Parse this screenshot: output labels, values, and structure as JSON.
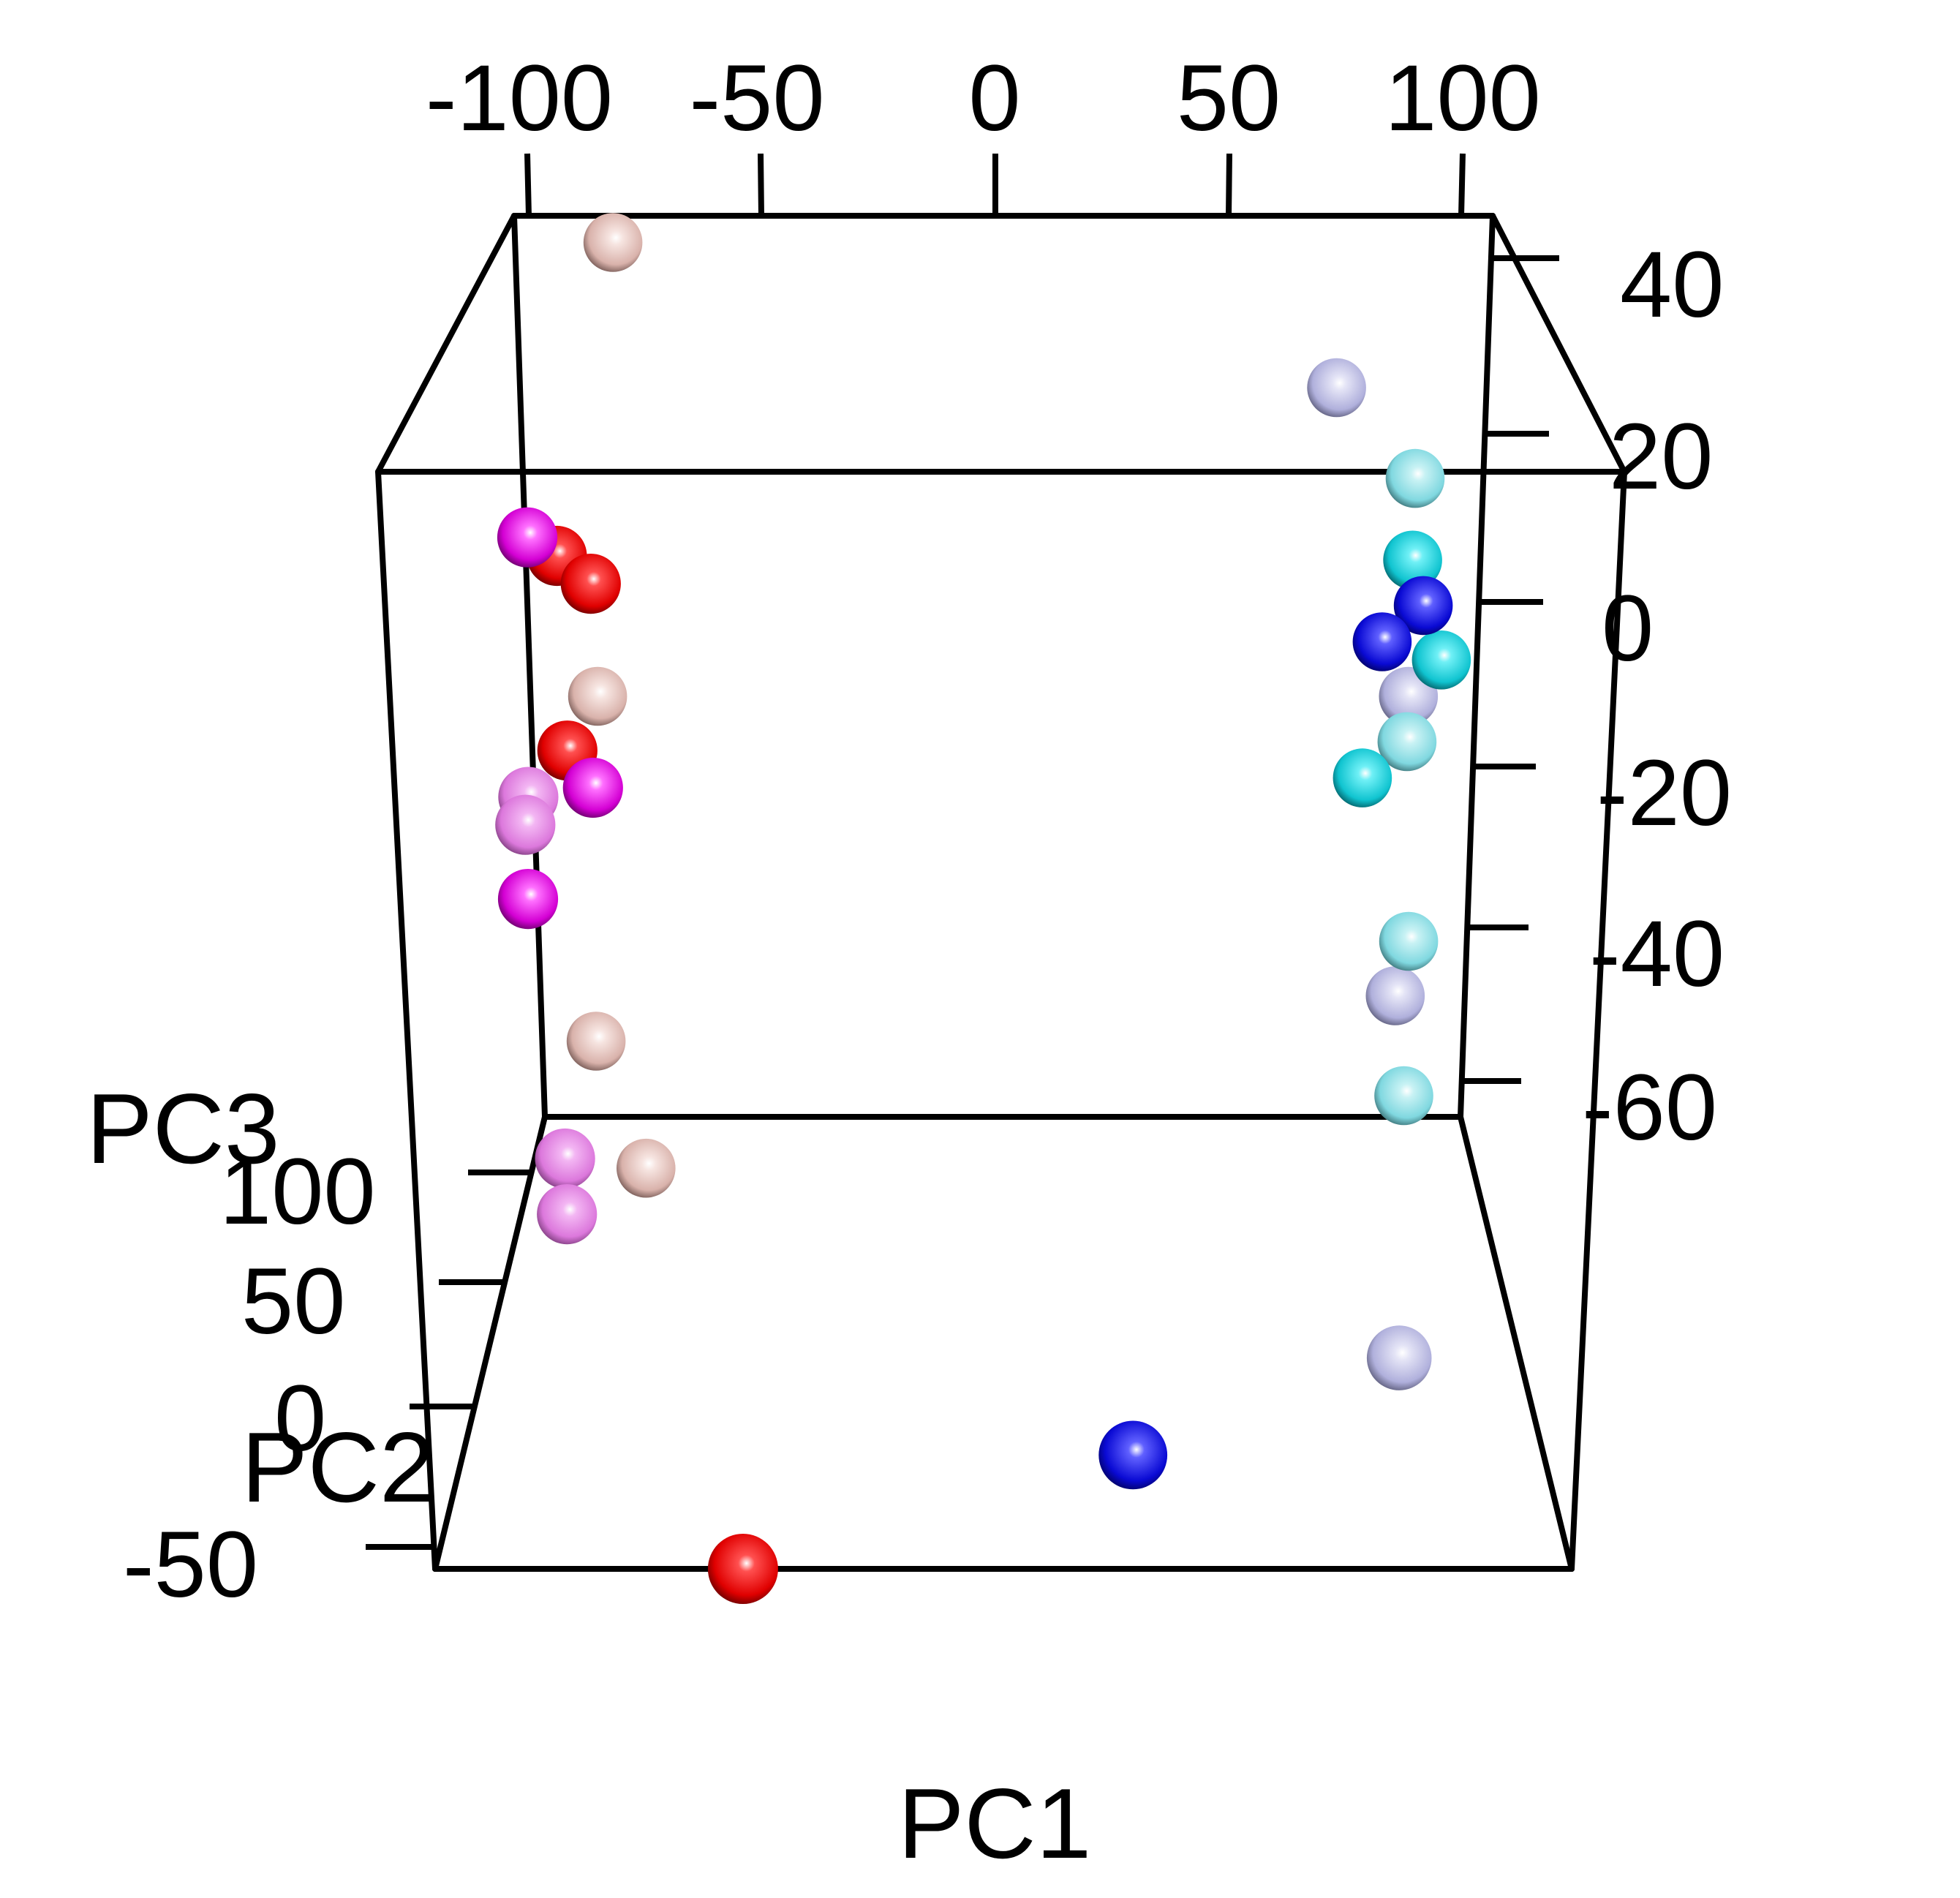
{
  "chart_data": {
    "type": "scatter3d",
    "xlabel": "PC1",
    "ylabel": "PC2",
    "zlabel": "PC3",
    "xticks": [
      "-100",
      "-50",
      "0",
      "50",
      "100"
    ],
    "yticks": [
      "100",
      "50",
      "0",
      "-50"
    ],
    "zticks": [
      "40",
      "20",
      "0",
      "-20",
      "-40",
      "-60"
    ],
    "xlim": [
      -120,
      120
    ],
    "ylim": [
      -50,
      100
    ],
    "zlim": [
      -60,
      40
    ],
    "colors": {
      "red": "#e00000",
      "magenta": "#d400d4",
      "violet": "#dc78dc",
      "rosybrown": "#e8c4be",
      "lavender": "#b8b8e4",
      "cyan": "#10c8d4",
      "paleturquoise": "#88dde4",
      "blue": "#0a0ad4"
    },
    "points": [
      {
        "pc1": -95,
        "pc2": 95,
        "pc3": 38,
        "color": "rosybrown"
      },
      {
        "pc1": -105,
        "pc2": 95,
        "pc3": -50,
        "color": "rosybrown"
      },
      {
        "pc1": -93,
        "pc2": 95,
        "pc3": -64,
        "color": "rosybrown"
      },
      {
        "pc1": -102,
        "pc2": 95,
        "pc3": -12,
        "color": "rosybrown"
      },
      {
        "pc1": -108,
        "pc2": 80,
        "pc3": 7,
        "color": "red"
      },
      {
        "pc1": -100,
        "pc2": 80,
        "pc3": 4,
        "color": "red"
      },
      {
        "pc1": -107,
        "pc2": 80,
        "pc3": -14,
        "color": "red"
      },
      {
        "pc1": -55,
        "pc2": -50,
        "pc3": -60,
        "color": "red"
      },
      {
        "pc1": -115,
        "pc2": 80,
        "pc3": 9,
        "color": "magenta"
      },
      {
        "pc1": -101,
        "pc2": 80,
        "pc3": -18,
        "color": "magenta"
      },
      {
        "pc1": -118,
        "pc2": 80,
        "pc3": -30,
        "color": "magenta"
      },
      {
        "pc1": -117,
        "pc2": 80,
        "pc3": -19,
        "color": "violet"
      },
      {
        "pc1": -118,
        "pc2": 80,
        "pc3": -22,
        "color": "violet"
      },
      {
        "pc1": -111,
        "pc2": 80,
        "pc3": -58,
        "color": "violet"
      },
      {
        "pc1": -111,
        "pc2": 80,
        "pc3": -64,
        "color": "violet"
      },
      {
        "pc1": 82,
        "pc2": 95,
        "pc3": 22,
        "color": "lavender"
      },
      {
        "pc1": 102,
        "pc2": 95,
        "pc3": -12,
        "color": "lavender"
      },
      {
        "pc1": 101,
        "pc2": 95,
        "pc3": -45,
        "color": "lavender"
      },
      {
        "pc1": 92,
        "pc2": 20,
        "pc3": -60,
        "color": "lavender"
      },
      {
        "pc1": 102,
        "pc2": 95,
        "pc3": 12,
        "color": "paleturquoise"
      },
      {
        "pc1": 102,
        "pc2": 95,
        "pc3": -17,
        "color": "paleturquoise"
      },
      {
        "pc1": 104,
        "pc2": 95,
        "pc3": -39,
        "color": "paleturquoise"
      },
      {
        "pc1": 104,
        "pc2": 95,
        "pc3": -56,
        "color": "paleturquoise"
      },
      {
        "pc1": 102,
        "pc2": 95,
        "pc3": 3,
        "color": "cyan"
      },
      {
        "pc1": 110,
        "pc2": 95,
        "pc3": -8,
        "color": "cyan"
      },
      {
        "pc1": 91,
        "pc2": 95,
        "pc3": -21,
        "color": "cyan"
      },
      {
        "pc1": 105,
        "pc2": 95,
        "pc3": -2,
        "color": "blue"
      },
      {
        "pc1": 95,
        "pc2": 95,
        "pc3": -6,
        "color": "blue"
      },
      {
        "pc1": 28,
        "pc2": -30,
        "pc3": -55,
        "color": "blue"
      }
    ]
  }
}
